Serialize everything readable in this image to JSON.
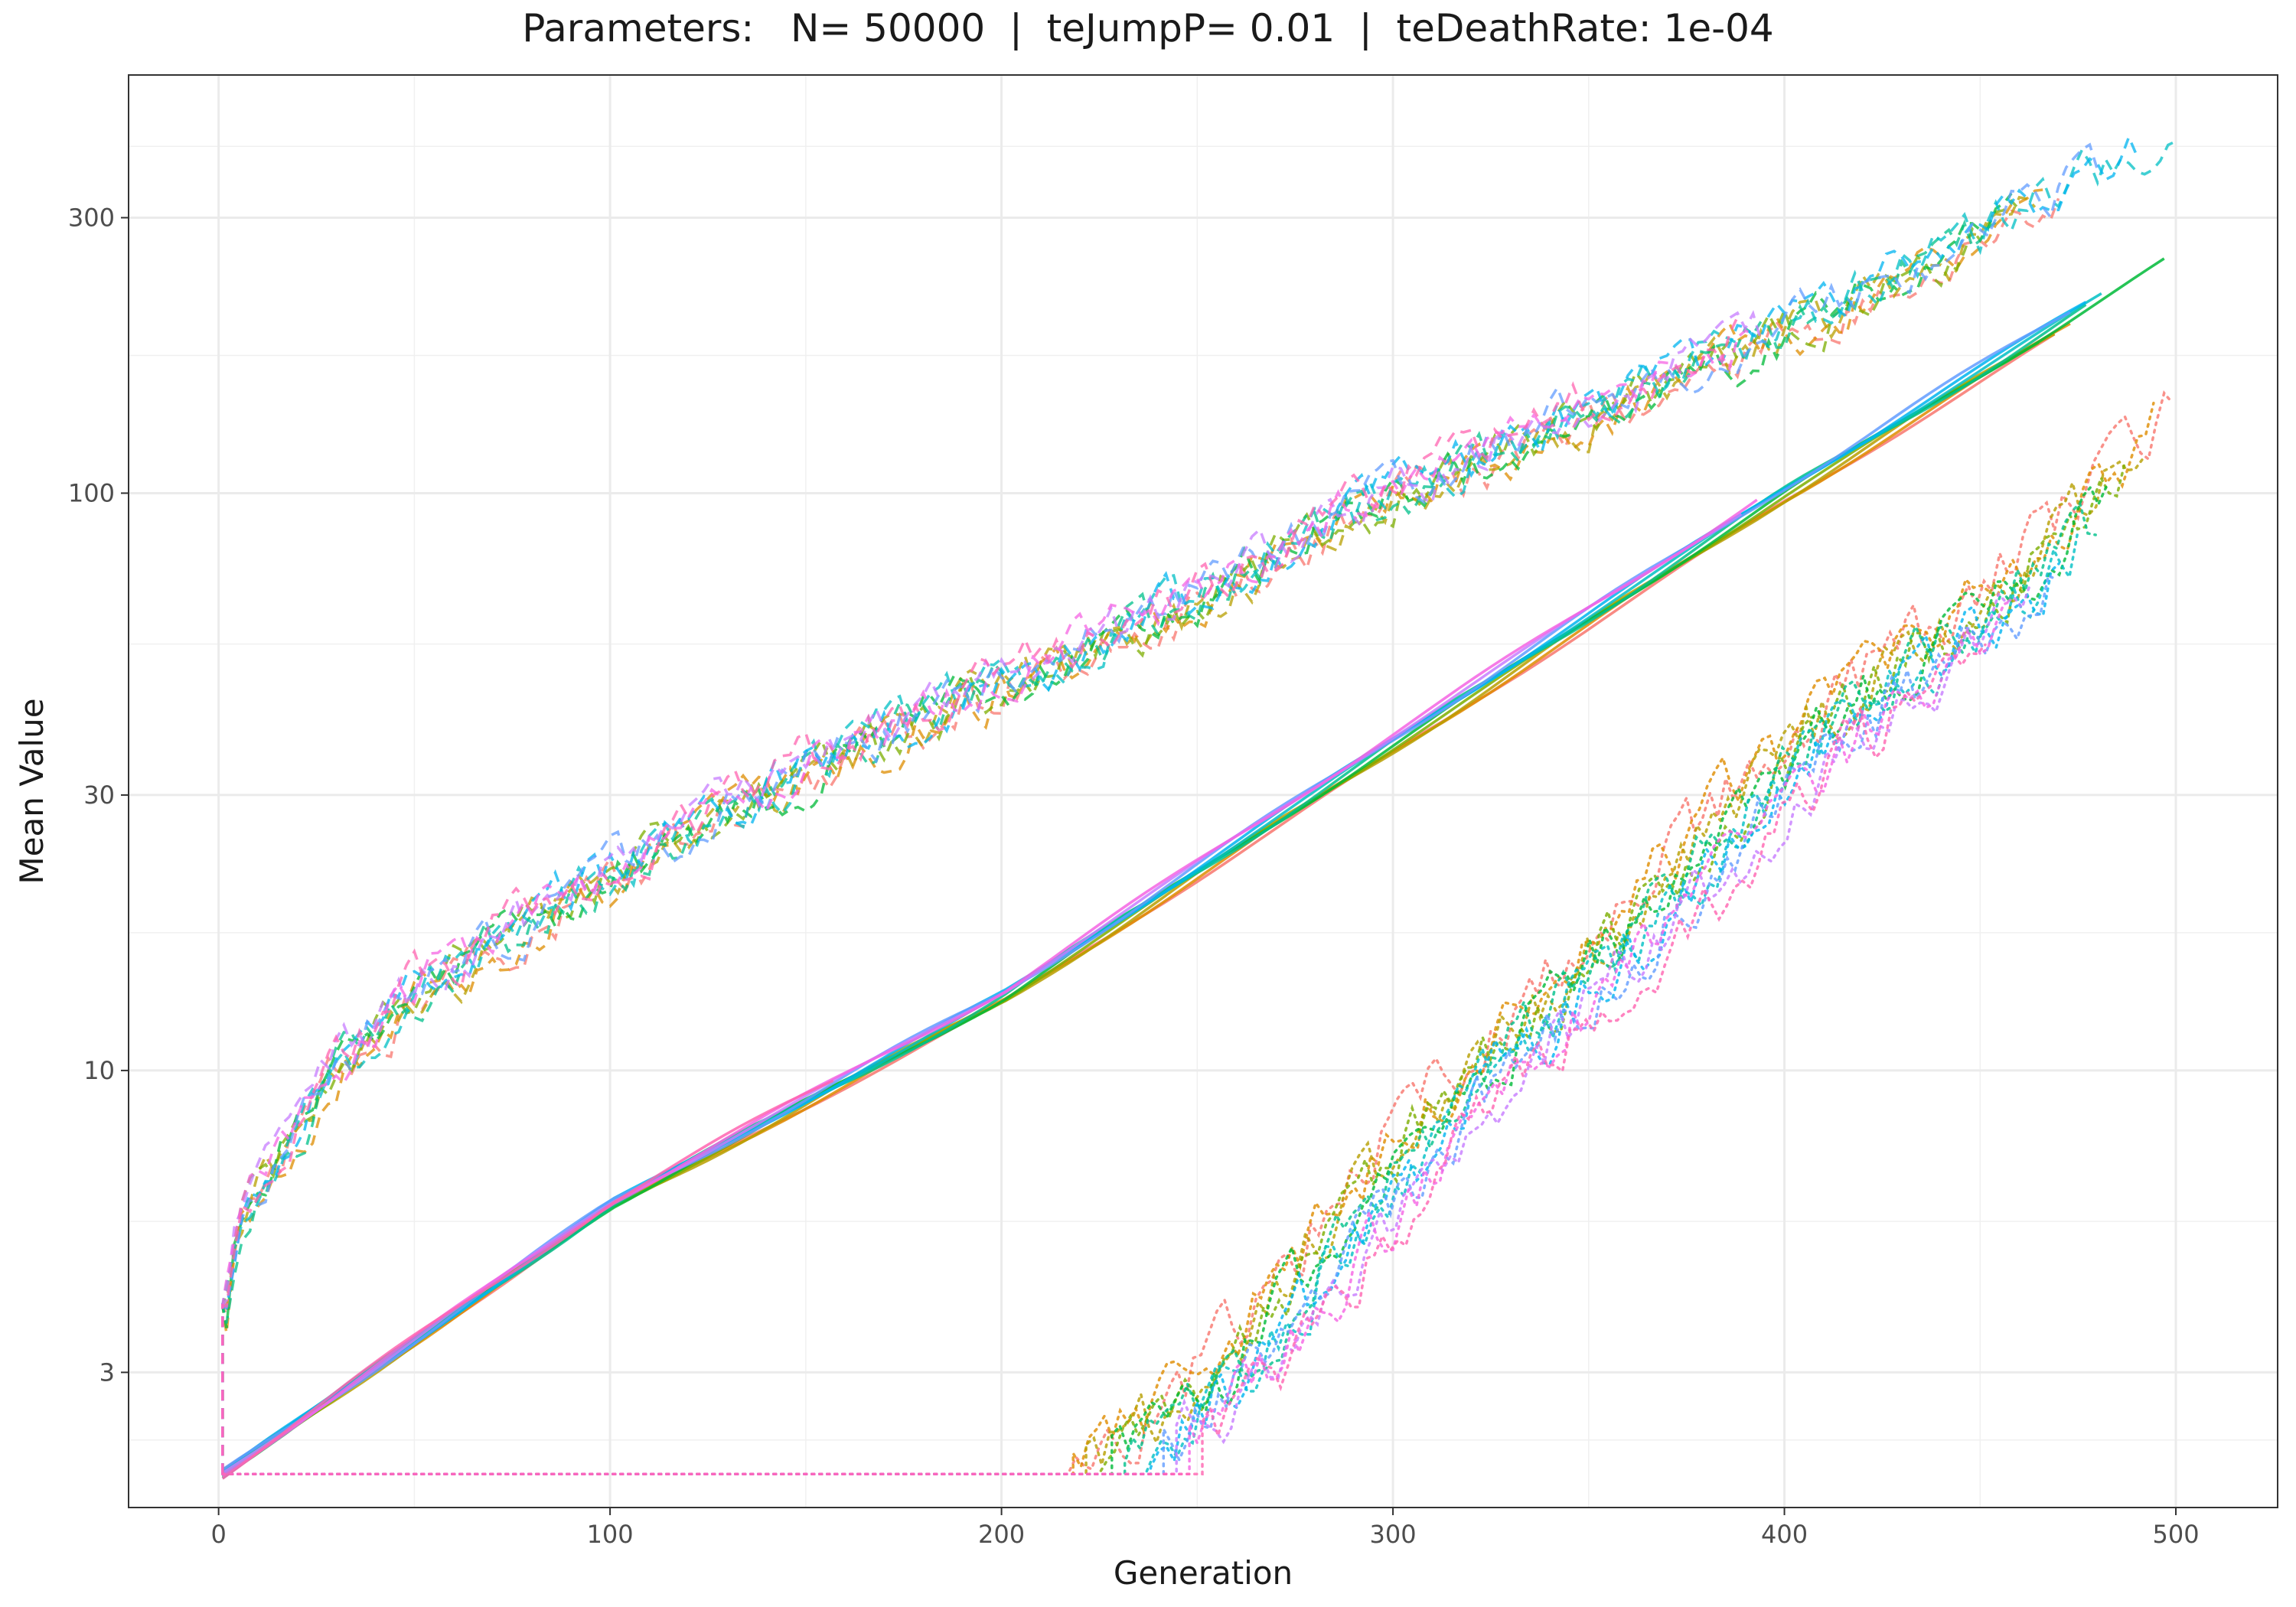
{
  "chart_data": {
    "type": "line",
    "title": "Parameters:   N= 50000  |  teJumpP= 0.01  |  teDeathRate: 1e-04",
    "xlabel": "Generation",
    "ylabel": "Mean Value",
    "xlim": [
      -23,
      526
    ],
    "ylim": [
      1.75,
      530
    ],
    "y_scale": "log",
    "x_ticks": [
      0,
      100,
      200,
      300,
      400,
      500
    ],
    "x_tick_labels": [
      "0",
      "100",
      "200",
      "300",
      "400",
      "500"
    ],
    "y_ticks": [
      3,
      10,
      30,
      100,
      300
    ],
    "y_tick_labels": [
      "3",
      "10",
      "30",
      "100",
      "300"
    ],
    "grid": true,
    "legend": "none",
    "colors": [
      "#F8766D",
      "#DE8C00",
      "#B79F00",
      "#7CAE00",
      "#00BA38",
      "#00C08B",
      "#00BFC4",
      "#00B4F0",
      "#619CFF",
      "#C77CFF",
      "#F564E3",
      "#FF64B0"
    ],
    "groups": [
      {
        "style": "solid",
        "description": "near-linear growth on log scale",
        "points": [
          [
            1,
            2
          ],
          [
            100,
            5.85
          ],
          [
            200,
            13.4
          ],
          [
            300,
            37
          ],
          [
            400,
            101
          ],
          [
            500,
            262
          ]
        ]
      },
      {
        "style": "dashed",
        "description": "noisy fast-rising curves",
        "points": [
          [
            1,
            2
          ],
          [
            1,
            3.5
          ],
          [
            5,
            5.5
          ],
          [
            15,
            7
          ],
          [
            30,
            10
          ],
          [
            50,
            13.5
          ],
          [
            100,
            22
          ],
          [
            150,
            33
          ],
          [
            200,
            47
          ],
          [
            250,
            65
          ],
          [
            300,
            100
          ],
          [
            350,
            138
          ],
          [
            400,
            190
          ],
          [
            450,
            280
          ],
          [
            500,
            430
          ]
        ]
      },
      {
        "style": "dotted",
        "description": "flat at 2 until ~gen 220 then rising",
        "points": [
          [
            1,
            2
          ],
          [
            215,
            2
          ],
          [
            250,
            3
          ],
          [
            300,
            8
          ],
          [
            350,
            17
          ],
          [
            400,
            38
          ],
          [
            450,
            68
          ],
          [
            500,
            145
          ]
        ]
      }
    ]
  }
}
